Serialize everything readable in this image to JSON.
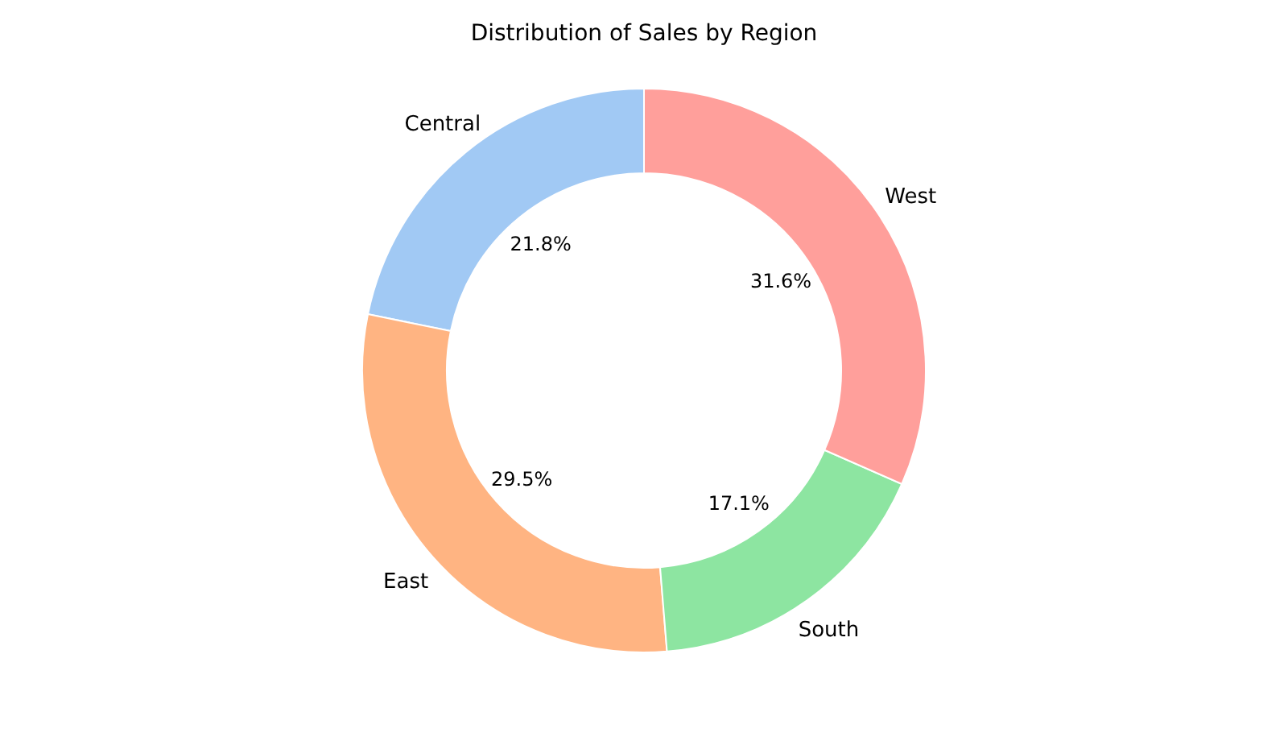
{
  "chart_data": {
    "type": "donut",
    "title": "Distribution of Sales by Region",
    "categories": [
      "Central",
      "East",
      "South",
      "West"
    ],
    "values": [
      21.8,
      29.5,
      17.1,
      31.6
    ],
    "colors": [
      "#a1c9f4",
      "#ffb482",
      "#8de5a1",
      "#ff9f9b"
    ],
    "value_labels": [
      "21.8%",
      "29.5%",
      "17.1%",
      "31.6%"
    ]
  }
}
